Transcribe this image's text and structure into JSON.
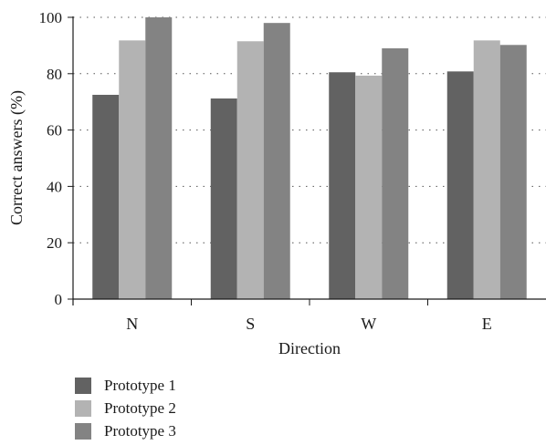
{
  "chart_data": {
    "type": "bar",
    "categories": [
      "N",
      "S",
      "W",
      "E"
    ],
    "series": [
      {
        "name": "Prototype 1",
        "color": "#626262",
        "values": [
          72.5,
          71.2,
          80.5,
          80.8
        ]
      },
      {
        "name": "Prototype 2",
        "color": "#b3b3b3",
        "values": [
          91.8,
          91.5,
          79.3,
          91.8
        ]
      },
      {
        "name": "Prototype 3",
        "color": "#838383",
        "values": [
          100.0,
          98.0,
          89.0,
          90.2
        ]
      }
    ],
    "xlabel": "Direction",
    "ylabel": "Correct answers (%)",
    "ylim": [
      0,
      100
    ],
    "yticks": [
      "0",
      "20",
      "40",
      "60",
      "80",
      "100"
    ],
    "grid": "horizontal dotted",
    "legend_position": "bottom-left"
  }
}
